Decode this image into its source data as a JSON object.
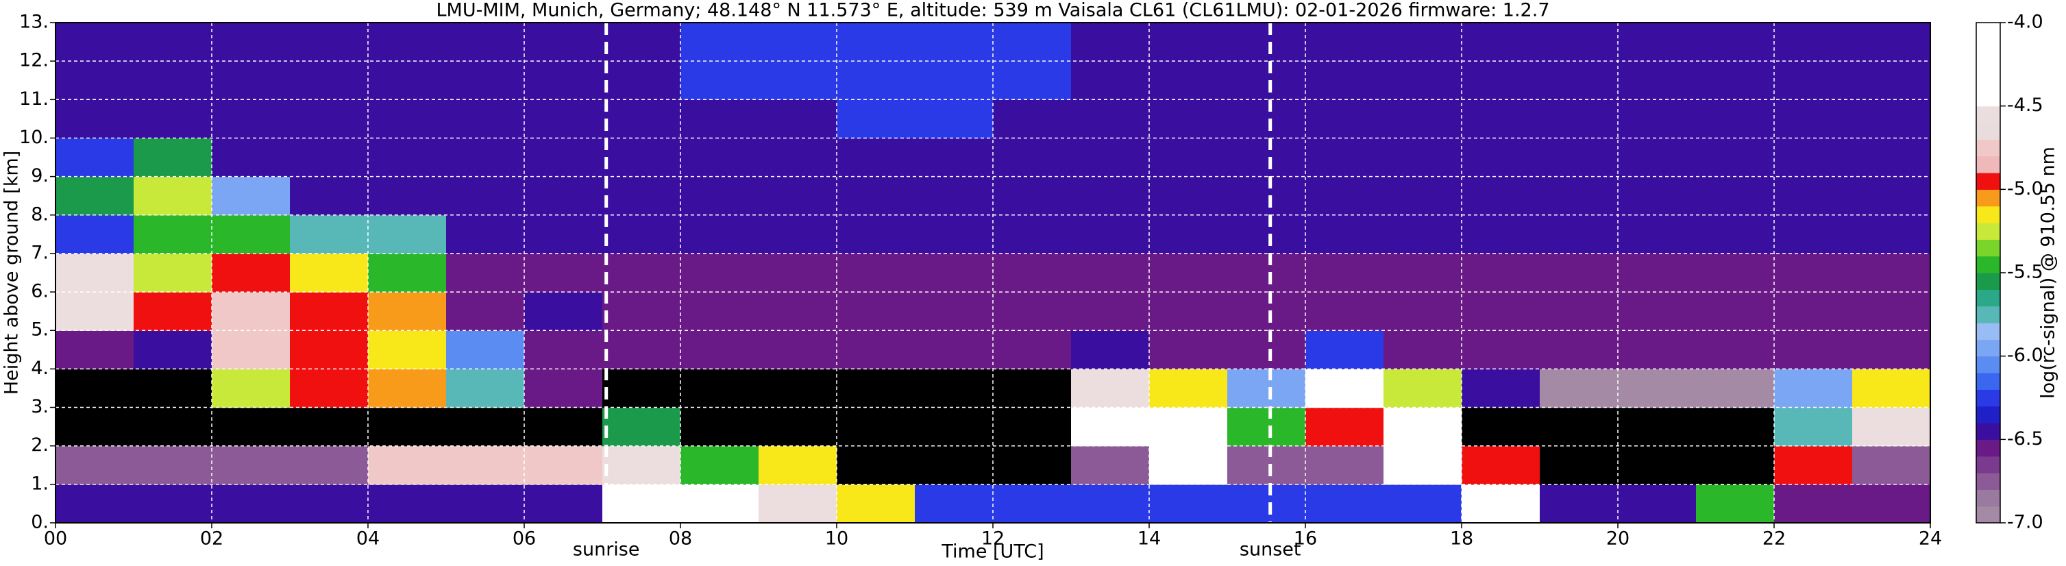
{
  "chart_data": {
    "type": "heatmap",
    "title": "LMU-MIM, Munich, Germany; 48.148° N 11.573° E, altitude: 539 m    Vaisala CL61 (CL61LMU): 02-01-2026    firmware: 1.2.7",
    "x_label": "Time [UTC]",
    "y_label": "Height above ground [km]",
    "xlim": [
      0,
      24
    ],
    "ylim": [
      0,
      13
    ],
    "xticks": [
      {
        "value": 0,
        "label": "00"
      },
      {
        "value": 2,
        "label": "02"
      },
      {
        "value": 4,
        "label": "04"
      },
      {
        "value": 6,
        "label": "06"
      },
      {
        "value": 8,
        "label": "08"
      },
      10,
      12,
      14,
      16,
      18,
      20,
      22,
      24
    ],
    "yticks": [
      {
        "value": 0,
        "label": "0."
      },
      {
        "value": 1,
        "label": "1."
      },
      {
        "value": 2,
        "label": "2."
      },
      {
        "value": 3,
        "label": "3."
      },
      {
        "value": 4,
        "label": "4."
      },
      {
        "value": 5,
        "label": "5."
      },
      {
        "value": 6,
        "label": "6."
      },
      {
        "value": 7,
        "label": "7."
      },
      {
        "value": 8,
        "label": "8."
      },
      {
        "value": 9,
        "label": "9."
      },
      {
        "value": 10,
        "label": "10."
      },
      {
        "value": 11,
        "label": "11."
      },
      {
        "value": 12,
        "label": "12."
      },
      {
        "value": 13,
        "label": "13."
      }
    ],
    "grid": true,
    "x": [
      0.5,
      1.5,
      2.5,
      3.5,
      4.5,
      5.5,
      6.5,
      7.5,
      8.5,
      9.5,
      10.5,
      11.5,
      12.5,
      13.5,
      14.5,
      15.5,
      16.5,
      17.5,
      18.5,
      19.5,
      20.5,
      21.5,
      22.5,
      23.5
    ],
    "y": [
      0.5,
      1.5,
      2.5,
      3.5,
      4.5,
      5.5,
      6.5,
      7.5,
      8.5,
      9.5,
      10.5,
      11.5,
      12.5
    ],
    "z": [
      [
        -6.5,
        -6.5,
        -6.5,
        -6.5,
        -6.4,
        -6.4,
        -6.4,
        -4.5,
        -4.5,
        -4.6,
        -5.2,
        -6.3,
        -6.3,
        -6.2,
        -6.2,
        -6.2,
        -6.2,
        -6.3,
        -4.5,
        -6.5,
        -6.5,
        -5.5,
        -6.6,
        -6.6
      ],
      [
        -6.8,
        -6.8,
        -6.8,
        -6.8,
        -4.8,
        -4.8,
        -4.8,
        -4.6,
        -5.4,
        -5.2,
        -7.5,
        -7.3,
        -7.3,
        -6.8,
        -4.5,
        -6.8,
        -6.8,
        -4.5,
        -5.0,
        -7.5,
        -7.5,
        -7.5,
        -5.0,
        -6.8
      ],
      [
        -7.5,
        -7.5,
        -7.5,
        -7.5,
        -7.5,
        -7.5,
        -7.5,
        -5.6,
        -7.5,
        -7.5,
        -7.5,
        -7.5,
        -7.5,
        -4.5,
        -4.5,
        -5.5,
        -5.0,
        -4.5,
        -7.4,
        -7.5,
        -7.5,
        -7.5,
        -5.8,
        -4.6
      ],
      [
        -7.3,
        -7.3,
        -5.3,
        -5.0,
        -5.1,
        -5.8,
        -6.6,
        -7.2,
        -7.3,
        -7.3,
        -7.3,
        -7.3,
        -7.3,
        -4.6,
        -5.2,
        -6.0,
        -4.5,
        -5.3,
        -6.4,
        -7.0,
        -7.0,
        -7.0,
        -6.0,
        -5.2
      ],
      [
        -6.6,
        -6.4,
        -4.8,
        -4.9,
        -5.2,
        -6.1,
        -6.6,
        -6.6,
        -6.6,
        -6.6,
        -6.6,
        -6.6,
        -6.6,
        -6.5,
        -6.6,
        -6.6,
        -6.2,
        -6.6,
        -6.6,
        -6.6,
        -6.6,
        -6.6,
        -6.6,
        -6.6
      ],
      [
        -4.6,
        -5.0,
        -4.8,
        -4.9,
        -5.1,
        -6.6,
        -6.5,
        -6.6,
        -6.6,
        -6.6,
        -6.6,
        -6.6,
        -6.6,
        -6.6,
        -6.6,
        -6.6,
        -6.6,
        -6.6,
        -6.6,
        -6.6,
        -6.6,
        -6.6,
        -6.6,
        -6.6
      ],
      [
        -4.6,
        -5.3,
        -5.0,
        -5.2,
        -5.4,
        -6.6,
        -6.6,
        -6.6,
        -6.6,
        -6.6,
        -6.6,
        -6.6,
        -6.6,
        -6.6,
        -6.6,
        -6.6,
        -6.6,
        -6.6,
        -6.6,
        -6.6,
        -6.6,
        -6.6,
        -6.6,
        -6.6
      ],
      [
        -6.2,
        -5.4,
        -5.4,
        -5.7,
        -5.8,
        -6.4,
        -6.5,
        -6.5,
        -6.5,
        -6.5,
        -6.5,
        -6.5,
        -6.5,
        -6.5,
        -6.5,
        -6.5,
        -6.5,
        -6.5,
        -6.5,
        -6.5,
        -6.5,
        -6.5,
        -6.5,
        -6.5
      ],
      [
        -5.6,
        -5.3,
        -5.9,
        -6.4,
        -6.5,
        -6.5,
        -6.5,
        -6.5,
        -6.5,
        -6.5,
        -6.5,
        -6.5,
        -6.5,
        -6.5,
        -6.5,
        -6.5,
        -6.5,
        -6.5,
        -6.5,
        -6.5,
        -6.5,
        -6.5,
        -6.5,
        -6.5
      ],
      [
        -6.3,
        -5.6,
        -6.4,
        -6.5,
        -6.5,
        -6.5,
        -6.5,
        -6.5,
        -6.5,
        -6.5,
        -6.5,
        -6.5,
        -6.5,
        -6.5,
        -6.5,
        -6.5,
        -6.5,
        -6.5,
        -6.5,
        -6.5,
        -6.5,
        -6.5,
        -6.5,
        -6.5
      ],
      [
        -6.5,
        -6.5,
        -6.5,
        -6.5,
        -6.5,
        -6.5,
        -6.5,
        -6.5,
        -6.4,
        -6.4,
        -6.3,
        -6.3,
        -6.4,
        -6.4,
        -6.5,
        -6.5,
        -6.5,
        -6.5,
        -6.5,
        -6.5,
        -6.5,
        -6.5,
        -6.5,
        -6.5
      ],
      [
        -6.5,
        -6.5,
        -6.5,
        -6.5,
        -6.5,
        -6.5,
        -6.5,
        -6.4,
        -6.3,
        -6.3,
        -6.3,
        -6.3,
        -6.3,
        -6.4,
        -6.5,
        -6.5,
        -6.5,
        -6.5,
        -6.5,
        -6.5,
        -6.5,
        -6.5,
        -6.5,
        -6.5
      ],
      [
        -6.5,
        -6.5,
        -6.5,
        -6.5,
        -6.5,
        -6.5,
        -6.5,
        -6.4,
        -6.3,
        -6.3,
        -6.3,
        -6.3,
        -6.3,
        -6.4,
        -6.5,
        -6.5,
        -6.5,
        -6.5,
        -6.5,
        -6.5,
        -6.5,
        -6.5,
        -6.5,
        -6.5
      ]
    ],
    "vlines": [
      {
        "x": 7.05,
        "label": "sunrise"
      },
      {
        "x": 15.55,
        "label": "sunset"
      }
    ],
    "colorbar": {
      "label": "log(rc-signal) @ 910.55 nm",
      "lim": [
        -7,
        -4
      ],
      "ticks": [
        {
          "value": -7,
          "label": "-7.0"
        },
        {
          "value": -6.5,
          "label": "-6.5"
        },
        {
          "value": -6,
          "label": "-6.0"
        },
        {
          "value": -5.5,
          "label": "-5.5"
        },
        {
          "value": -5,
          "label": "-5.0"
        },
        {
          "value": -4.5,
          "label": "-4.5"
        },
        {
          "value": -4,
          "label": "-4.0"
        }
      ],
      "under_color": "#000000",
      "colors": [
        "#a58aa5",
        "#9a7a9e",
        "#8c5a96",
        "#7a3a8e",
        "#6a1a86",
        "#3a0fa0",
        "#2020c8",
        "#2a3ae6",
        "#3a66f0",
        "#5a8cf2",
        "#7aa6f4",
        "#98bcf4",
        "#58b8b8",
        "#2aa888",
        "#1a9a4a",
        "#2ab82a",
        "#7ad42a",
        "#c8e83a",
        "#f8e81a",
        "#f89a1a",
        "#f01010",
        "#f0b8b8",
        "#f0c8c8",
        "#e8dcdc",
        "#ecdede",
        "#ffffff",
        "#ffffff",
        "#ffffff",
        "#ffffff",
        "#ffffff"
      ]
    }
  }
}
